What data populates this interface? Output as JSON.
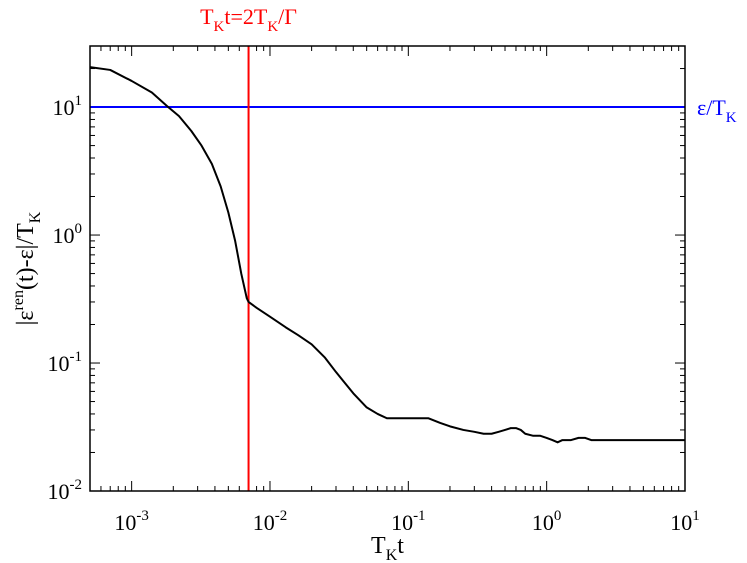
{
  "chart_data": {
    "type": "line",
    "title": "",
    "xlabel": {
      "main": "T",
      "sub": "K",
      "tail": "t"
    },
    "ylabel": {
      "pre": "|ε",
      "sup": "ren",
      "mid": "(t)-ε|/T",
      "sub": "K"
    },
    "x_scale": "log",
    "y_scale": "log",
    "xlim": [
      0.0005,
      10
    ],
    "ylim": [
      0.01,
      30
    ],
    "x_ticks": [
      {
        "value": 0.001,
        "base": "10",
        "exp": "-3"
      },
      {
        "value": 0.01,
        "base": "10",
        "exp": "-2"
      },
      {
        "value": 0.1,
        "base": "10",
        "exp": "-1"
      },
      {
        "value": 1,
        "base": "10",
        "exp": "0"
      },
      {
        "value": 10,
        "base": "10",
        "exp": "1"
      }
    ],
    "y_ticks": [
      {
        "value": 0.01,
        "base": "10",
        "exp": "-2"
      },
      {
        "value": 0.1,
        "base": "10",
        "exp": "-1"
      },
      {
        "value": 1,
        "base": "10",
        "exp": "0"
      },
      {
        "value": 10,
        "base": "10",
        "exp": "1"
      }
    ],
    "grid": false,
    "series": [
      {
        "color": "#000000",
        "x": [
          0.0005,
          0.0007,
          0.001,
          0.0014,
          0.0018,
          0.0022,
          0.0027,
          0.0032,
          0.0038,
          0.0044,
          0.005,
          0.0056,
          0.0062,
          0.0068,
          0.007,
          0.008,
          0.01,
          0.013,
          0.016,
          0.02,
          0.025,
          0.03,
          0.04,
          0.05,
          0.06,
          0.07,
          0.08,
          0.1,
          0.12,
          0.14,
          0.17,
          0.2,
          0.25,
          0.3,
          0.35,
          0.4,
          0.45,
          0.5,
          0.55,
          0.6,
          0.65,
          0.7,
          0.8,
          0.9,
          1.0,
          1.1,
          1.2,
          1.3,
          1.5,
          1.7,
          1.9,
          2.1,
          2.3,
          2.6,
          3.0,
          3.5,
          4.0,
          5.0,
          6.0,
          7.0,
          8.0,
          10.0
        ],
        "y": [
          20.5,
          19.5,
          16,
          13,
          10.2,
          8.5,
          6.5,
          5.0,
          3.6,
          2.4,
          1.5,
          0.9,
          0.5,
          0.32,
          0.3,
          0.27,
          0.23,
          0.19,
          0.165,
          0.14,
          0.11,
          0.085,
          0.058,
          0.045,
          0.04,
          0.037,
          0.037,
          0.037,
          0.037,
          0.037,
          0.034,
          0.032,
          0.03,
          0.029,
          0.028,
          0.028,
          0.029,
          0.03,
          0.031,
          0.031,
          0.03,
          0.028,
          0.027,
          0.027,
          0.026,
          0.025,
          0.024,
          0.025,
          0.025,
          0.026,
          0.026,
          0.025,
          0.025,
          0.025,
          0.025,
          0.025,
          0.025,
          0.025,
          0.025,
          0.025,
          0.025,
          0.025
        ]
      }
    ],
    "hline": {
      "y": 10,
      "color": "#0000ff",
      "label": {
        "main": "ε/T",
        "sub": "K"
      }
    },
    "vline": {
      "x": 0.007,
      "color": "#ff0000",
      "label": {
        "a": "T",
        "a_sub": "K",
        "b": "t=2T",
        "b_sub": "K",
        "c": "/Γ"
      }
    }
  }
}
